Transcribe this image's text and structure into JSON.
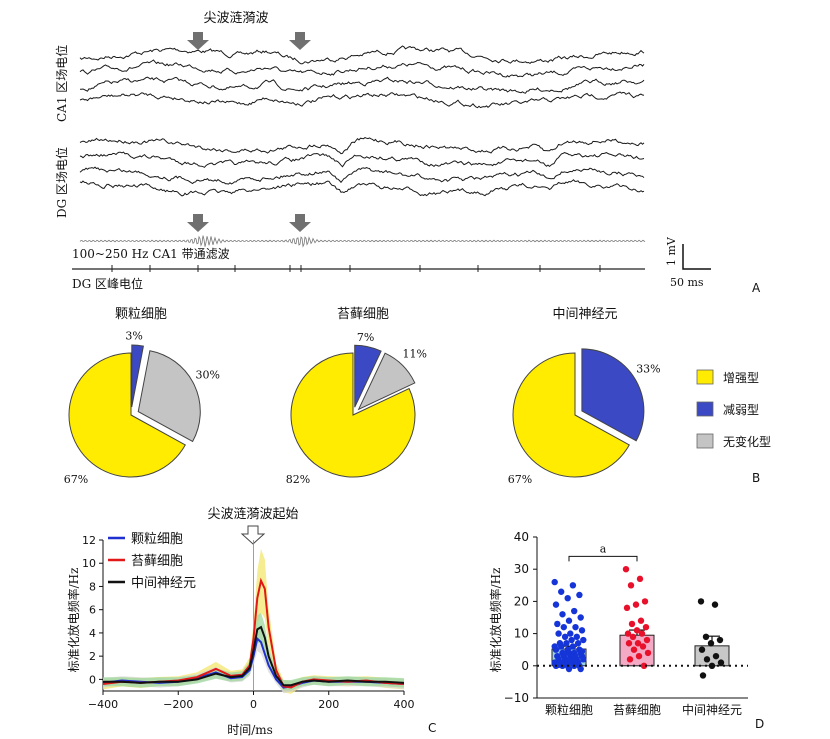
{
  "panel_a": {
    "arrow_label": "尖波涟漪波",
    "ca1_label": "CA1 区场电位",
    "dg_label": "DG 区场电位",
    "bandpass_label": "100~250 Hz CA1 带通滤波",
    "spike_label": "DG 区峰电位",
    "scale_v": "1 mV",
    "scale_t": "50 ms",
    "panel_letter": "A"
  },
  "panel_b": {
    "panel_letter": "B",
    "legend": [
      {
        "label": "增强型",
        "color": "#ffec00"
      },
      {
        "label": "减弱型",
        "color": "#3b49c4"
      },
      {
        "label": "无变化型",
        "color": "#c4c4c4"
      }
    ]
  },
  "panel_c": {
    "panel_letter": "C",
    "annotation": "尖波涟漪波起始",
    "xlabel": "时间/ms",
    "ylabel": "标准化放电频率/Hz"
  },
  "panel_d": {
    "panel_letter": "D",
    "ylabel": "标准化放电频率/Hz",
    "sig_label": "a"
  },
  "chart_data": [
    {
      "type": "pie",
      "title": "颗粒细胞",
      "slices": [
        {
          "label": "增强型",
          "value": 67,
          "text": "67%",
          "color": "#ffec00"
        },
        {
          "label": "减弱型",
          "value": 3,
          "text": "3%",
          "color": "#3b49c4"
        },
        {
          "label": "无变化型",
          "value": 30,
          "text": "30%",
          "color": "#c4c4c4"
        }
      ]
    },
    {
      "type": "pie",
      "title": "苔藓细胞",
      "slices": [
        {
          "label": "增强型",
          "value": 82,
          "text": "82%",
          "color": "#ffec00"
        },
        {
          "label": "减弱型",
          "value": 7,
          "text": "7%",
          "color": "#3b49c4"
        },
        {
          "label": "无变化型",
          "value": 11,
          "text": "11%",
          "color": "#c4c4c4"
        }
      ]
    },
    {
      "type": "pie",
      "title": "中间神经元",
      "slices": [
        {
          "label": "增强型",
          "value": 67,
          "text": "67%",
          "color": "#ffec00"
        },
        {
          "label": "减弱型",
          "value": 33,
          "text": "33%",
          "color": "#3b49c4"
        }
      ]
    },
    {
      "type": "line",
      "xlim": [
        -400,
        400
      ],
      "ylim": [
        -1,
        12
      ],
      "xticks": [
        -400,
        -200,
        0,
        200,
        400
      ],
      "yticks": [
        0,
        2,
        4,
        6,
        8,
        10,
        12
      ],
      "series": [
        {
          "name": "颗粒细胞",
          "color": "#1f2fd0",
          "x": [
            -400,
            -350,
            -300,
            -250,
            -200,
            -150,
            -100,
            -60,
            -30,
            -10,
            0,
            10,
            20,
            30,
            40,
            60,
            80,
            100,
            130,
            160,
            200,
            250,
            300,
            350,
            400
          ],
          "y": [
            -0.3,
            -0.1,
            -0.2,
            -0.3,
            -0.2,
            0.1,
            0.6,
            0.1,
            0.2,
            0.8,
            2.0,
            3.5,
            3.2,
            2.2,
            1.2,
            0.0,
            -0.7,
            -0.6,
            -0.3,
            -0.1,
            -0.2,
            -0.2,
            -0.2,
            -0.3,
            -0.4
          ]
        },
        {
          "name": "苔藓细胞",
          "color": "#e01818",
          "x": [
            -400,
            -350,
            -300,
            -250,
            -200,
            -150,
            -100,
            -60,
            -30,
            -10,
            0,
            10,
            20,
            30,
            40,
            60,
            80,
            100,
            130,
            160,
            200,
            250,
            300,
            350,
            400
          ],
          "y": [
            -0.4,
            -0.2,
            -0.3,
            -0.2,
            -0.1,
            0.2,
            0.9,
            0.3,
            0.4,
            1.2,
            3.5,
            7.0,
            8.5,
            7.8,
            4.5,
            0.8,
            -0.6,
            -0.7,
            -0.2,
            0.0,
            -0.1,
            -0.2,
            -0.1,
            -0.3,
            -0.4
          ]
        },
        {
          "name": "中间神经元",
          "color": "#111111",
          "x": [
            -400,
            -350,
            -300,
            -250,
            -200,
            -150,
            -100,
            -60,
            -30,
            -10,
            0,
            10,
            20,
            30,
            40,
            60,
            80,
            100,
            130,
            160,
            200,
            250,
            300,
            350,
            400
          ],
          "y": [
            -0.2,
            -0.2,
            -0.3,
            -0.2,
            -0.2,
            0.0,
            0.5,
            0.2,
            0.3,
            1.0,
            2.5,
            4.3,
            4.5,
            3.6,
            2.0,
            0.3,
            -0.5,
            -0.5,
            -0.2,
            -0.1,
            -0.2,
            -0.1,
            -0.2,
            -0.2,
            -0.3
          ]
        }
      ]
    },
    {
      "type": "bar",
      "categories": [
        "颗粒细胞",
        "苔藓细胞",
        "中间神经元"
      ],
      "values": [
        5.2,
        9.5,
        6.2
      ],
      "sem": [
        0.9,
        1.6,
        3.0
      ],
      "colors": [
        "#9dd3e6",
        "#f4a9c4",
        "#c8c8c8"
      ],
      "point_colors": [
        "#1535d8",
        "#e8102a",
        "#111111"
      ],
      "ylim": [
        -10,
        40
      ],
      "yticks": [
        -10,
        0,
        10,
        20,
        30,
        40
      ],
      "points": [
        [
          26,
          25,
          23,
          22,
          21,
          19,
          17,
          16,
          15,
          14,
          13,
          12,
          12,
          11,
          10,
          10,
          9,
          9,
          8,
          8,
          7,
          7,
          7,
          6,
          6,
          6,
          5,
          5,
          5,
          4,
          4,
          4,
          4,
          3,
          3,
          3,
          3,
          3,
          2,
          2,
          2,
          2,
          2,
          1,
          1,
          1,
          1,
          1,
          1,
          0,
          0,
          0,
          0,
          0,
          -1,
          -1,
          0.5,
          2.5,
          3.5,
          4.5,
          1.5,
          0.3
        ],
        [
          30,
          27,
          25,
          20,
          19,
          18,
          14,
          13,
          12,
          11,
          10,
          10,
          9,
          8,
          7,
          7,
          6,
          5,
          4,
          3,
          2,
          0
        ],
        [
          20,
          19,
          9,
          8,
          7,
          5,
          3,
          2,
          1,
          0,
          -3
        ]
      ]
    }
  ]
}
